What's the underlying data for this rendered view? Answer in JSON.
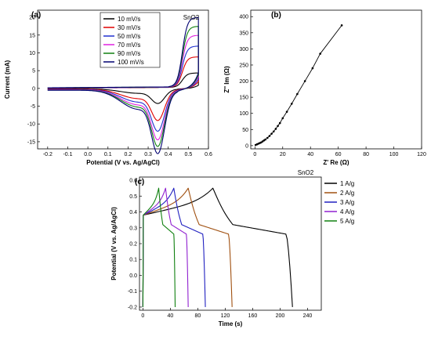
{
  "chart_data": [
    {
      "panel": "(a)",
      "type": "line",
      "annotation": "SnO2",
      "xlabel": "Potential (V vs. Ag/AgCl)",
      "ylabel": "Current (mA)",
      "xlim": [
        -0.25,
        0.6
      ],
      "ylim": [
        -17,
        22
      ],
      "xticks": [
        -0.2,
        -0.1,
        0.0,
        0.1,
        0.2,
        0.3,
        0.4,
        0.5,
        0.6
      ],
      "yticks": [
        -15,
        -10,
        -5,
        0,
        5,
        10,
        15,
        20
      ],
      "legend": "top-left",
      "series": [
        {
          "name": "10 mV/s",
          "color": "#000000",
          "ia": 4.0,
          "ic": -3.5,
          "base": 0.15
        },
        {
          "name": "30 mV/s",
          "color": "#e00000",
          "ia": 8.5,
          "ic": -7.5,
          "base": 0.25
        },
        {
          "name": "50 mV/s",
          "color": "#2030d0",
          "ia": 11.5,
          "ic": -10.0,
          "base": 0.35
        },
        {
          "name": "70 mV/s",
          "color": "#e020e0",
          "ia": 14.5,
          "ic": -12.0,
          "base": 0.45
        },
        {
          "name": "90 mV/s",
          "color": "#108010",
          "ia": 17.0,
          "ic": -13.5,
          "base": 0.55
        },
        {
          "name": "100 mV/s",
          "color": "#000070",
          "ia": 19.5,
          "ic": -15.2,
          "base": 0.6
        }
      ]
    },
    {
      "panel": "(b)",
      "type": "scatter",
      "xlabel": "Z' Re (Ω)",
      "ylabel": "Z'' Im (Ω)",
      "xlim": [
        -3,
        120
      ],
      "ylim": [
        -10,
        420
      ],
      "xticks": [
        0,
        20,
        40,
        60,
        80,
        100,
        120
      ],
      "yticks": [
        0,
        50,
        100,
        150,
        200,
        250,
        300,
        350,
        400
      ],
      "series": [
        {
          "name": "",
          "color": "#000000",
          "x": [
            0.5,
            1.5,
            2.5,
            3.5,
            4.5,
            5.5,
            6.5,
            7.5,
            9,
            10.5,
            12,
            13.5,
            15,
            16.5,
            18,
            20,
            23,
            26.5,
            30.5,
            36,
            41.5,
            47,
            62.5
          ],
          "y": [
            2,
            4,
            6,
            8,
            10,
            13,
            16,
            19,
            24,
            30,
            37,
            44,
            52,
            61,
            70,
            85,
            105,
            130,
            160,
            200,
            240,
            285,
            373
          ]
        }
      ]
    },
    {
      "panel": "(c)",
      "type": "line",
      "annotation": "SnO2",
      "xlabel": "Time (s)",
      "ylabel": "Potential (V vs. Ag/AgCl)",
      "xlim": [
        -5,
        260
      ],
      "ylim": [
        -0.22,
        0.62
      ],
      "xticks": [
        0,
        40,
        80,
        120,
        160,
        200,
        240
      ],
      "yticks": [
        -0.2,
        -0.1,
        0.0,
        0.1,
        0.2,
        0.3,
        0.4,
        0.5,
        0.6
      ],
      "legend": "top-right",
      "series": [
        {
          "name": "1 A/g",
          "color": "#000000",
          "tc": 102,
          "td": 218
        },
        {
          "name": "2 A/g",
          "color": "#a05010",
          "tc": 66,
          "td": 130
        },
        {
          "name": "3 A/g",
          "color": "#2020c0",
          "tc": 45,
          "td": 91
        },
        {
          "name": "4 A/g",
          "color": "#9020d0",
          "tc": 33,
          "td": 66
        },
        {
          "name": "5 A/g",
          "color": "#108010",
          "tc": 23,
          "td": 47
        }
      ]
    }
  ]
}
